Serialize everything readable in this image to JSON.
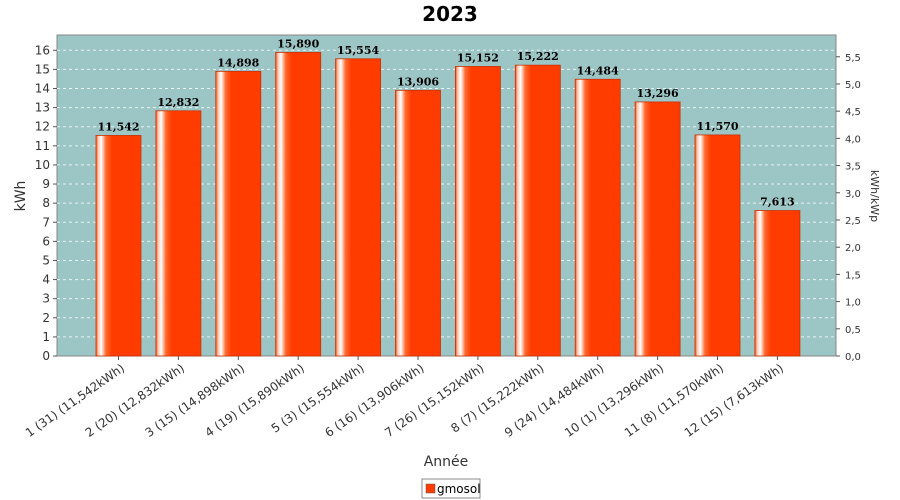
{
  "chart_data": {
    "type": "bar",
    "title": "2023",
    "xlabel": "Année",
    "ylabel": "kWh",
    "y2label": "kWh/kWp",
    "ylim": [
      0,
      16.8
    ],
    "y2lim": [
      0,
      5.9
    ],
    "yticks": [
      "0",
      "1",
      "2",
      "3",
      "4",
      "5",
      "6",
      "7",
      "8",
      "9",
      "10",
      "11",
      "12",
      "13",
      "14",
      "15",
      "16"
    ],
    "y2ticks": [
      "0,0",
      "0,5",
      "1,0",
      "1,5",
      "2,0",
      "2,5",
      "3,0",
      "3,5",
      "4,0",
      "4,5",
      "5,0",
      "5,5"
    ],
    "categories": [
      "1 (31)  (11,542kWh)",
      "2 (20)  (12,832kWh)",
      "3 (15)  (14,898kWh)",
      "4 (19)  (15,890kWh)",
      "5 (3)  (15,554kWh)",
      "6 (16)  (13,906kWh)",
      "7 (26)  (15,152kWh)",
      "8 (7)  (15,222kWh)",
      "9 (24)  (14,484kWh)",
      "10 (1)  (13,296kWh)",
      "11 (8)  (11,570kWh)",
      "12 (15)  (7,613kWh)"
    ],
    "values": [
      11.542,
      12.832,
      14.898,
      15.89,
      15.554,
      13.906,
      15.152,
      15.222,
      14.484,
      13.296,
      11.57,
      7.613
    ],
    "value_labels": [
      "11,542",
      "12,832",
      "14,898",
      "15,890",
      "15,554",
      "13,906",
      "15,152",
      "15,222",
      "14,484",
      "13,296",
      "11,570",
      "7,613"
    ],
    "series": [
      {
        "name": "gmosol",
        "color": "#ff3c00"
      }
    ],
    "plot_background": "#9cc5c5",
    "grid": true,
    "legend_position": "bottom"
  }
}
